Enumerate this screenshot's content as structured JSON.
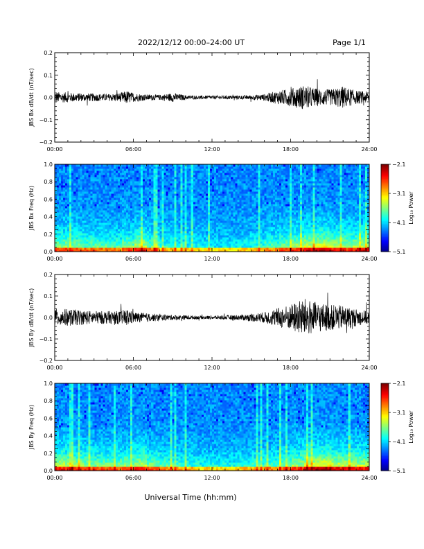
{
  "header": {
    "date_range": "2022/12/12  00:00–24:00 UT",
    "page": "Page 1/1"
  },
  "xlabel": "Universal Time (hh:mm)",
  "chart_data": [
    {
      "type": "line",
      "ylabel": "JBS Bx dB/dt (nT/sec)",
      "xlim": [
        0,
        24
      ],
      "ylim": [
        -0.2,
        0.2
      ],
      "x_ticks": [
        "00:00",
        "06:00",
        "12:00",
        "18:00",
        "24:00"
      ],
      "y_ticks": [
        "0.2",
        "0.1",
        "0.0",
        "−0.1",
        "−0.2"
      ],
      "y_tick_values": [
        0.2,
        0.1,
        0.0,
        -0.1,
        -0.2
      ],
      "envelope": {
        "hours": [
          0,
          1,
          2,
          3,
          4,
          5,
          5.5,
          6,
          7,
          8,
          9,
          10,
          11,
          12,
          13,
          14,
          15,
          16,
          17,
          18,
          19,
          20,
          21,
          22,
          23,
          24
        ],
        "amplitude": [
          0.025,
          0.022,
          0.018,
          0.018,
          0.015,
          0.02,
          0.03,
          0.02,
          0.013,
          0.012,
          0.02,
          0.01,
          0.008,
          0.008,
          0.008,
          0.009,
          0.01,
          0.015,
          0.03,
          0.04,
          0.055,
          0.04,
          0.035,
          0.05,
          0.03,
          0.025
        ]
      },
      "color": "#000000"
    },
    {
      "type": "heatmap",
      "ylabel": "JBS Bx Freq (Hz)",
      "xlim": [
        0,
        24
      ],
      "ylim": [
        0,
        1.0
      ],
      "x_ticks": [
        "00:00",
        "06:00",
        "12:00",
        "18:00",
        "24:00"
      ],
      "y_ticks": [
        "1.0",
        "0.8",
        "0.6",
        "0.4",
        "0.2",
        "0.0"
      ],
      "y_tick_values": [
        1.0,
        0.8,
        0.6,
        0.4,
        0.2,
        0.0
      ],
      "colorbar": {
        "label": "Log₁₀ Power",
        "ticks": [
          "−2.1",
          "−3.1",
          "−4.1",
          "−5.1"
        ],
        "tick_values": [
          -2.1,
          -3.1,
          -4.1,
          -5.1
        ],
        "range": [
          -5.1,
          -2.1
        ]
      },
      "activity_by_hour": [
        0.6,
        0.55,
        0.5,
        0.5,
        0.45,
        0.55,
        0.7,
        0.5,
        0.35,
        0.3,
        0.3,
        0.25,
        0.25,
        0.25,
        0.3,
        0.35,
        0.45,
        0.55,
        0.65,
        0.75,
        0.8,
        0.7,
        0.65,
        0.7,
        0.65
      ]
    },
    {
      "type": "line",
      "ylabel": "JBS By dB/dt (nT/sec)",
      "xlim": [
        0,
        24
      ],
      "ylim": [
        -0.2,
        0.2
      ],
      "x_ticks": [
        "00:00",
        "06:00",
        "12:00",
        "18:00",
        "24:00"
      ],
      "y_ticks": [
        "0.2",
        "0.1",
        "0.0",
        "−0.1",
        "−0.2"
      ],
      "y_tick_values": [
        0.2,
        0.1,
        0.0,
        -0.1,
        -0.2
      ],
      "envelope": {
        "hours": [
          0,
          1,
          2,
          3,
          4,
          5,
          5.5,
          6,
          7,
          8,
          9,
          10,
          11,
          12,
          13,
          14,
          15,
          16,
          17,
          18,
          19,
          20,
          21,
          22,
          23,
          24
        ],
        "amplitude": [
          0.04,
          0.04,
          0.035,
          0.03,
          0.03,
          0.03,
          0.04,
          0.025,
          0.02,
          0.015,
          0.012,
          0.01,
          0.008,
          0.008,
          0.01,
          0.012,
          0.018,
          0.025,
          0.045,
          0.06,
          0.09,
          0.07,
          0.06,
          0.055,
          0.04,
          0.03
        ]
      },
      "color": "#000000"
    },
    {
      "type": "heatmap",
      "ylabel": "JBS By Freq (Hz)",
      "xlim": [
        0,
        24
      ],
      "ylim": [
        0,
        1.0
      ],
      "x_ticks": [
        "00:00",
        "06:00",
        "12:00",
        "18:00",
        "24:00"
      ],
      "y_ticks": [
        "1.0",
        "0.8",
        "0.6",
        "0.4",
        "0.2",
        "0.0"
      ],
      "y_tick_values": [
        1.0,
        0.8,
        0.6,
        0.4,
        0.2,
        0.0
      ],
      "colorbar": {
        "label": "Log₁₀ Power",
        "ticks": [
          "−2.1",
          "−3.1",
          "−4.1",
          "−5.1"
        ],
        "tick_values": [
          -2.1,
          -3.1,
          -4.1,
          -5.1
        ],
        "range": [
          -5.1,
          -2.1
        ]
      },
      "activity_by_hour": [
        0.7,
        0.65,
        0.6,
        0.55,
        0.55,
        0.6,
        0.7,
        0.55,
        0.45,
        0.4,
        0.35,
        0.3,
        0.3,
        0.3,
        0.35,
        0.4,
        0.45,
        0.55,
        0.65,
        0.8,
        0.85,
        0.75,
        0.7,
        0.7,
        0.65
      ]
    }
  ]
}
